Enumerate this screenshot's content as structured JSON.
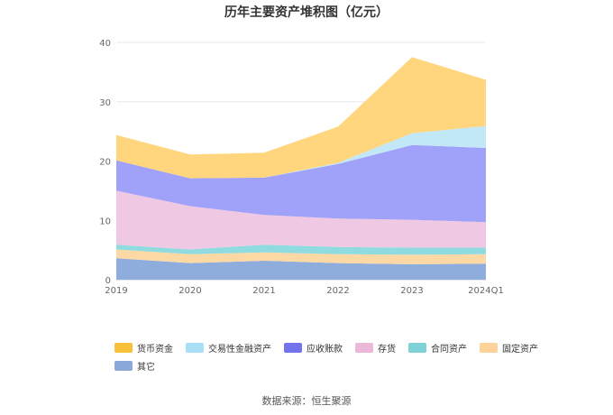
{
  "chart_data": {
    "type": "area",
    "stacked": true,
    "title": "历年主要资产堆积图（亿元）",
    "categories": [
      "2019",
      "2020",
      "2021",
      "2022",
      "2023",
      "2024Q1"
    ],
    "ylim": [
      0,
      40
    ],
    "yticks": [
      0,
      10,
      20,
      30,
      40
    ],
    "grid": true,
    "legend_position": "bottom",
    "series": [
      {
        "name": "其它",
        "color": "#8eacdc",
        "values": [
          3.6,
          2.8,
          3.2,
          2.8,
          2.6,
          2.7
        ]
      },
      {
        "name": "固定资产",
        "color": "#fcd9a4",
        "values": [
          1.5,
          1.5,
          1.4,
          1.5,
          1.6,
          1.6
        ]
      },
      {
        "name": "合同资产",
        "color": "#8fdbe0",
        "values": [
          0.8,
          0.8,
          1.3,
          1.2,
          1.2,
          1.1
        ]
      },
      {
        "name": "存货",
        "color": "#efc9e3",
        "values": [
          9.1,
          7.3,
          5.0,
          4.8,
          4.7,
          4.3
        ]
      },
      {
        "name": "应收账款",
        "color": "#9fa2f8",
        "values": [
          5.1,
          4.7,
          6.3,
          9.2,
          12.6,
          12.5
        ]
      },
      {
        "name": "交易性金融资产",
        "color": "#c2e7f7",
        "values": [
          0.0,
          0.0,
          0.0,
          0.2,
          2.0,
          3.7
        ]
      },
      {
        "name": "货币资金",
        "color": "#ffd67e",
        "values": [
          4.3,
          4.0,
          4.2,
          6.1,
          12.8,
          7.8
        ]
      }
    ],
    "legend_order": [
      "货币资金",
      "交易性金融资产",
      "应收账款",
      "存货",
      "合同资产",
      "固定资产",
      "其它"
    ],
    "legend_colors": {
      "货币资金": "#f9c13a",
      "交易性金融资产": "#a9def7",
      "应收账款": "#7373ee",
      "存货": "#ebb8d8",
      "合同资产": "#7fd3d8",
      "固定资产": "#fcd398",
      "其它": "#8aa8da"
    }
  },
  "footer": {
    "source": "数据来源：恒生聚源"
  }
}
